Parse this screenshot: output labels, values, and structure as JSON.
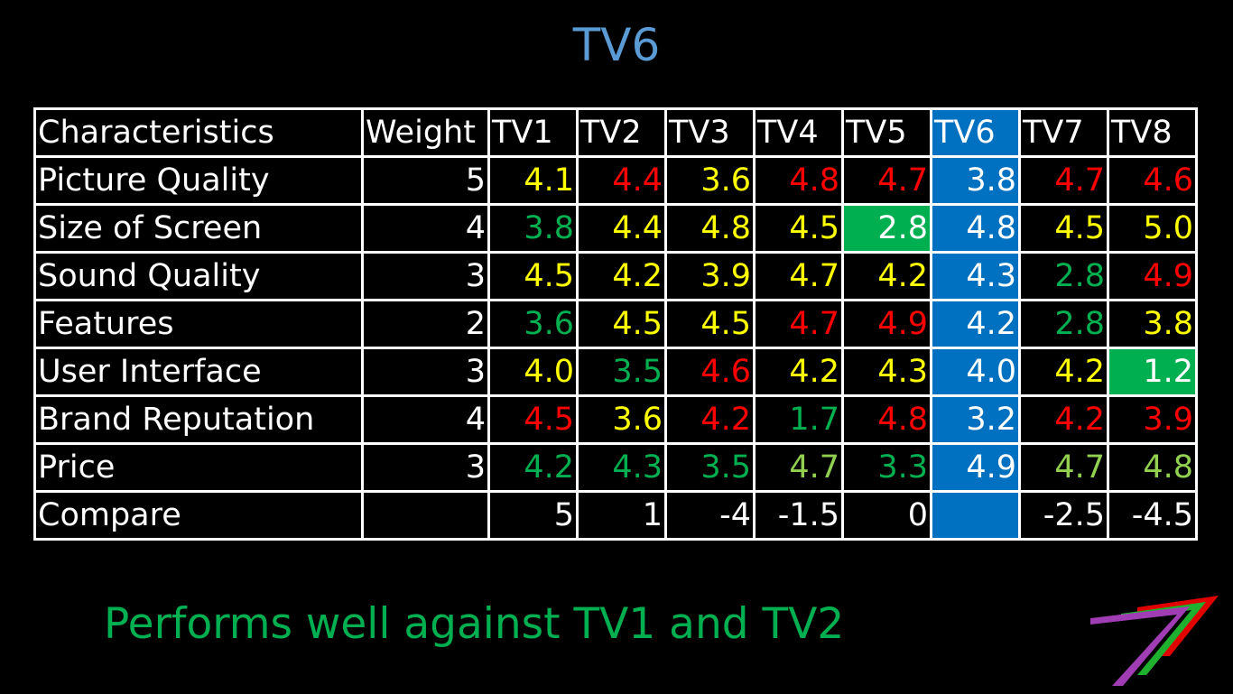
{
  "title": "TV6",
  "table": {
    "header": [
      "Characteristics",
      "Weight",
      "TV1",
      "TV2",
      "TV3",
      "TV4",
      "TV5",
      "TV6",
      "TV7",
      "TV8"
    ],
    "rows": [
      {
        "label": "Picture Quality",
        "weight": "5",
        "cells": [
          {
            "v": "4.1",
            "c": "#ffff00"
          },
          {
            "v": "4.4",
            "c": "#ff0000"
          },
          {
            "v": "3.6",
            "c": "#ffff00"
          },
          {
            "v": "4.8",
            "c": "#ff0000"
          },
          {
            "v": "4.7",
            "c": "#ff0000"
          },
          {
            "v": "3.8",
            "c": "#ffffff"
          },
          {
            "v": "4.7",
            "c": "#ff0000"
          },
          {
            "v": "4.6",
            "c": "#ff0000"
          }
        ]
      },
      {
        "label": "Size of Screen",
        "weight": "4",
        "cells": [
          {
            "v": "3.8",
            "c": "#00b050"
          },
          {
            "v": "4.4",
            "c": "#ffff00"
          },
          {
            "v": "4.8",
            "c": "#ffff00"
          },
          {
            "v": "4.5",
            "c": "#ffff00"
          },
          {
            "v": "2.8",
            "c": "#ffffff",
            "bg": "#00b050"
          },
          {
            "v": "4.8",
            "c": "#ffffff"
          },
          {
            "v": "4.5",
            "c": "#ffff00"
          },
          {
            "v": "5.0",
            "c": "#ffff00"
          }
        ]
      },
      {
        "label": "Sound Quality",
        "weight": "3",
        "cells": [
          {
            "v": "4.5",
            "c": "#ffff00"
          },
          {
            "v": "4.2",
            "c": "#ffff00"
          },
          {
            "v": "3.9",
            "c": "#ffff00"
          },
          {
            "v": "4.7",
            "c": "#ffff00"
          },
          {
            "v": "4.2",
            "c": "#ffff00"
          },
          {
            "v": "4.3",
            "c": "#ffffff"
          },
          {
            "v": "2.8",
            "c": "#00b050"
          },
          {
            "v": "4.9",
            "c": "#ff0000"
          }
        ]
      },
      {
        "label": "Features",
        "weight": "2",
        "cells": [
          {
            "v": "3.6",
            "c": "#00b050"
          },
          {
            "v": "4.5",
            "c": "#ffff00"
          },
          {
            "v": "4.5",
            "c": "#ffff00"
          },
          {
            "v": "4.7",
            "c": "#ff0000"
          },
          {
            "v": "4.9",
            "c": "#ff0000"
          },
          {
            "v": "4.2",
            "c": "#ffffff"
          },
          {
            "v": "2.8",
            "c": "#00b050"
          },
          {
            "v": "3.8",
            "c": "#ffff00"
          }
        ]
      },
      {
        "label": "User Interface",
        "weight": "3",
        "cells": [
          {
            "v": "4.0",
            "c": "#ffff00"
          },
          {
            "v": "3.5",
            "c": "#00b050"
          },
          {
            "v": "4.6",
            "c": "#ff0000"
          },
          {
            "v": "4.2",
            "c": "#ffff00"
          },
          {
            "v": "4.3",
            "c": "#ffff00"
          },
          {
            "v": "4.0",
            "c": "#ffffff"
          },
          {
            "v": "4.2",
            "c": "#ffff00"
          },
          {
            "v": "1.2",
            "c": "#ffffff",
            "bg": "#00b050"
          }
        ]
      },
      {
        "label": "Brand Reputation",
        "weight": "4",
        "cells": [
          {
            "v": "4.5",
            "c": "#ff0000"
          },
          {
            "v": "3.6",
            "c": "#ffff00"
          },
          {
            "v": "4.2",
            "c": "#ff0000"
          },
          {
            "v": "1.7",
            "c": "#00b050"
          },
          {
            "v": "4.8",
            "c": "#ff0000"
          },
          {
            "v": "3.2",
            "c": "#ffffff"
          },
          {
            "v": "4.2",
            "c": "#ff0000"
          },
          {
            "v": "3.9",
            "c": "#ff0000"
          }
        ]
      },
      {
        "label": "Price",
        "weight": "3",
        "cells": [
          {
            "v": "4.2",
            "c": "#00b050"
          },
          {
            "v": "4.3",
            "c": "#00b050"
          },
          {
            "v": "3.5",
            "c": "#00b050"
          },
          {
            "v": "4.7",
            "c": "#92d050"
          },
          {
            "v": "3.3",
            "c": "#00b050"
          },
          {
            "v": "4.9",
            "c": "#ffffff"
          },
          {
            "v": "4.7",
            "c": "#92d050"
          },
          {
            "v": "4.8",
            "c": "#92d050"
          }
        ]
      },
      {
        "label": "Compare",
        "weight": "",
        "cells": [
          {
            "v": "5",
            "c": "#ffffff"
          },
          {
            "v": "1",
            "c": "#ffffff"
          },
          {
            "v": "-4",
            "c": "#ffffff"
          },
          {
            "v": "-1.5",
            "c": "#ffffff"
          },
          {
            "v": "0",
            "c": "#ffffff"
          },
          {
            "v": "",
            "c": "#ffffff"
          },
          {
            "v": "-2.5",
            "c": "#ffffff"
          },
          {
            "v": "-4.5",
            "c": "#ffffff"
          }
        ]
      }
    ],
    "highlight_column_color": "#0070c0"
  },
  "footer": "Performs well against TV1 and TV2",
  "logo_icon": "stripes-seven-logo-icon",
  "colors": {
    "background": "#000000",
    "title": "#5b9bd5",
    "footer": "#00b050",
    "grid_border": "#ffffff",
    "high": "#ff0000",
    "mid": "#ffff00",
    "low": "#00b050",
    "price_high": "#92d050"
  }
}
